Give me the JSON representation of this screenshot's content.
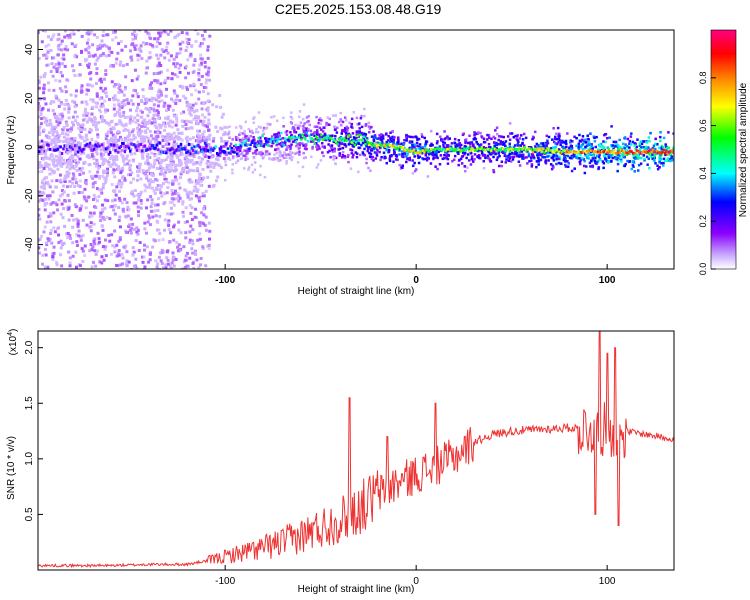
{
  "title": "C2E5.2025.153.08.48.G19",
  "chart_data": [
    {
      "type": "heatmap",
      "xlabel": "Height of straight line (km)",
      "ylabel": "Frequency (Hz)",
      "xlim": [
        -198,
        135
      ],
      "ylim": [
        -50,
        48
      ],
      "xticks": [
        -100,
        0,
        100
      ],
      "yticks": [
        -40,
        -20,
        0,
        20,
        40
      ],
      "colorbar": {
        "label": "Normalized spectral amplitude",
        "range": [
          0,
          1
        ],
        "ticks": [
          "0.0",
          "0.2",
          "0.4",
          "0.6",
          "0.8"
        ],
        "colormap": [
          "#ffffff",
          "#8b00ff",
          "#0000ff",
          "#00ffff",
          "#00ff00",
          "#ffff00",
          "#ff8000",
          "#ff0000",
          "#ff0080"
        ]
      },
      "ridge": {
        "x": [
          -198,
          -160,
          -120,
          -100,
          -80,
          -60,
          -40,
          -30,
          -20,
          -10,
          0,
          10,
          20,
          40,
          60,
          80,
          100,
          120,
          135
        ],
        "freq": [
          0,
          0,
          -1,
          -1,
          2,
          4,
          3,
          3,
          1,
          0,
          -2,
          -1,
          -1,
          -1,
          -1,
          -2,
          -2,
          -2,
          -2
        ],
        "amplitude": [
          0.15,
          0.15,
          0.2,
          0.3,
          0.35,
          0.4,
          0.5,
          0.55,
          0.6,
          0.62,
          0.65,
          0.55,
          0.55,
          0.55,
          0.6,
          0.7,
          0.8,
          0.85,
          0.85
        ]
      }
    },
    {
      "type": "line",
      "xlabel": "Height of straight line (km)",
      "ylabel": "SNR (10 * v/v)",
      "y_multiplier": "(x10",
      "y_multiplier_exp": "4",
      "y_multiplier_close": ")",
      "xlim": [
        -198,
        135
      ],
      "ylim": [
        0,
        2.15
      ],
      "xticks": [
        -100,
        0,
        100
      ],
      "yticks": [
        "0.5",
        "1.0",
        "1.5",
        "2.0"
      ],
      "line_color": "#ee3333",
      "series": [
        {
          "x": [
            -198,
            -180,
            -160,
            -140,
            -120,
            -110,
            -100,
            -90,
            -80,
            -70,
            -60,
            -50,
            -40,
            -30,
            -20,
            -10,
            0,
            10,
            20,
            30,
            40,
            50,
            60,
            70,
            80,
            90,
            100,
            110,
            120,
            135
          ],
          "y": [
            0.04,
            0.04,
            0.04,
            0.05,
            0.05,
            0.08,
            0.12,
            0.16,
            0.2,
            0.25,
            0.31,
            0.38,
            0.45,
            0.55,
            0.68,
            0.78,
            0.86,
            0.93,
            1.02,
            1.15,
            1.22,
            1.25,
            1.26,
            1.27,
            1.28,
            1.27,
            1.26,
            1.25,
            1.22,
            1.18
          ]
        }
      ],
      "spikes": [
        {
          "x": -35,
          "y": 1.55
        },
        {
          "x": -15,
          "y": 1.2
        },
        {
          "x": 10,
          "y": 1.5
        },
        {
          "x": 96,
          "y": 2.15
        },
        {
          "x": 100,
          "y": 1.95
        },
        {
          "x": 104,
          "y": 2.0
        },
        {
          "x": 94,
          "y": 0.5
        },
        {
          "x": 106,
          "y": 0.4
        }
      ]
    }
  ]
}
